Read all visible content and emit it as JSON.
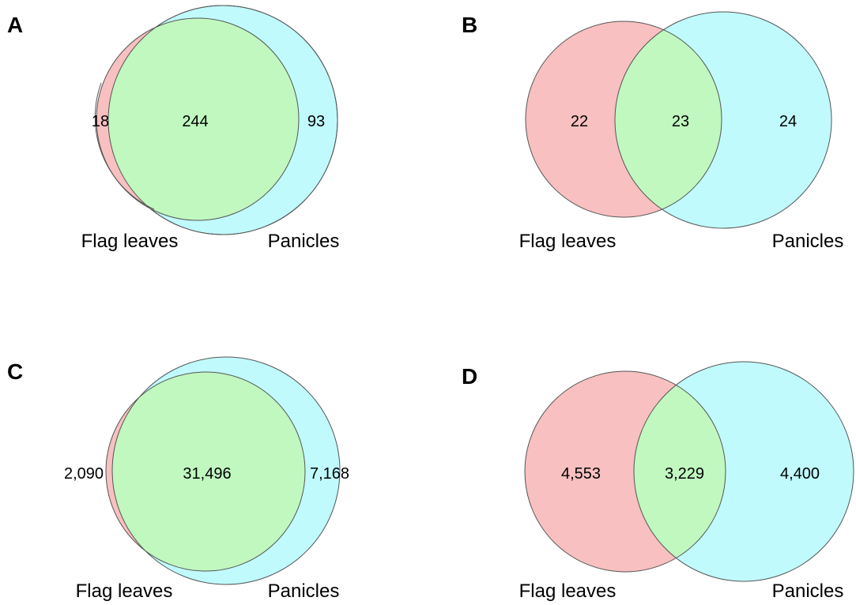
{
  "colors": {
    "set_a": "#f8c0c0",
    "set_b": "#c0fafc",
    "overlap": "#c0f8c0",
    "stroke": "#555555"
  },
  "panels": [
    {
      "letter": "A",
      "set_a_label": "Flag leaves",
      "set_b_label": "Panicles",
      "only_a": "18",
      "both": "244",
      "only_b": "93"
    },
    {
      "letter": "B",
      "set_a_label": "Flag leaves",
      "set_b_label": "Panicles",
      "only_a": "22",
      "both": "23",
      "only_b": "24"
    },
    {
      "letter": "C",
      "set_a_label": "Flag leaves",
      "set_b_label": "Panicles",
      "only_a": "2,090",
      "both": "31,496",
      "only_b": "7,168"
    },
    {
      "letter": "D",
      "set_a_label": "Flag leaves",
      "set_b_label": "Panicles",
      "only_a": "4,553",
      "both": "3,229",
      "only_b": "4,400"
    }
  ]
}
